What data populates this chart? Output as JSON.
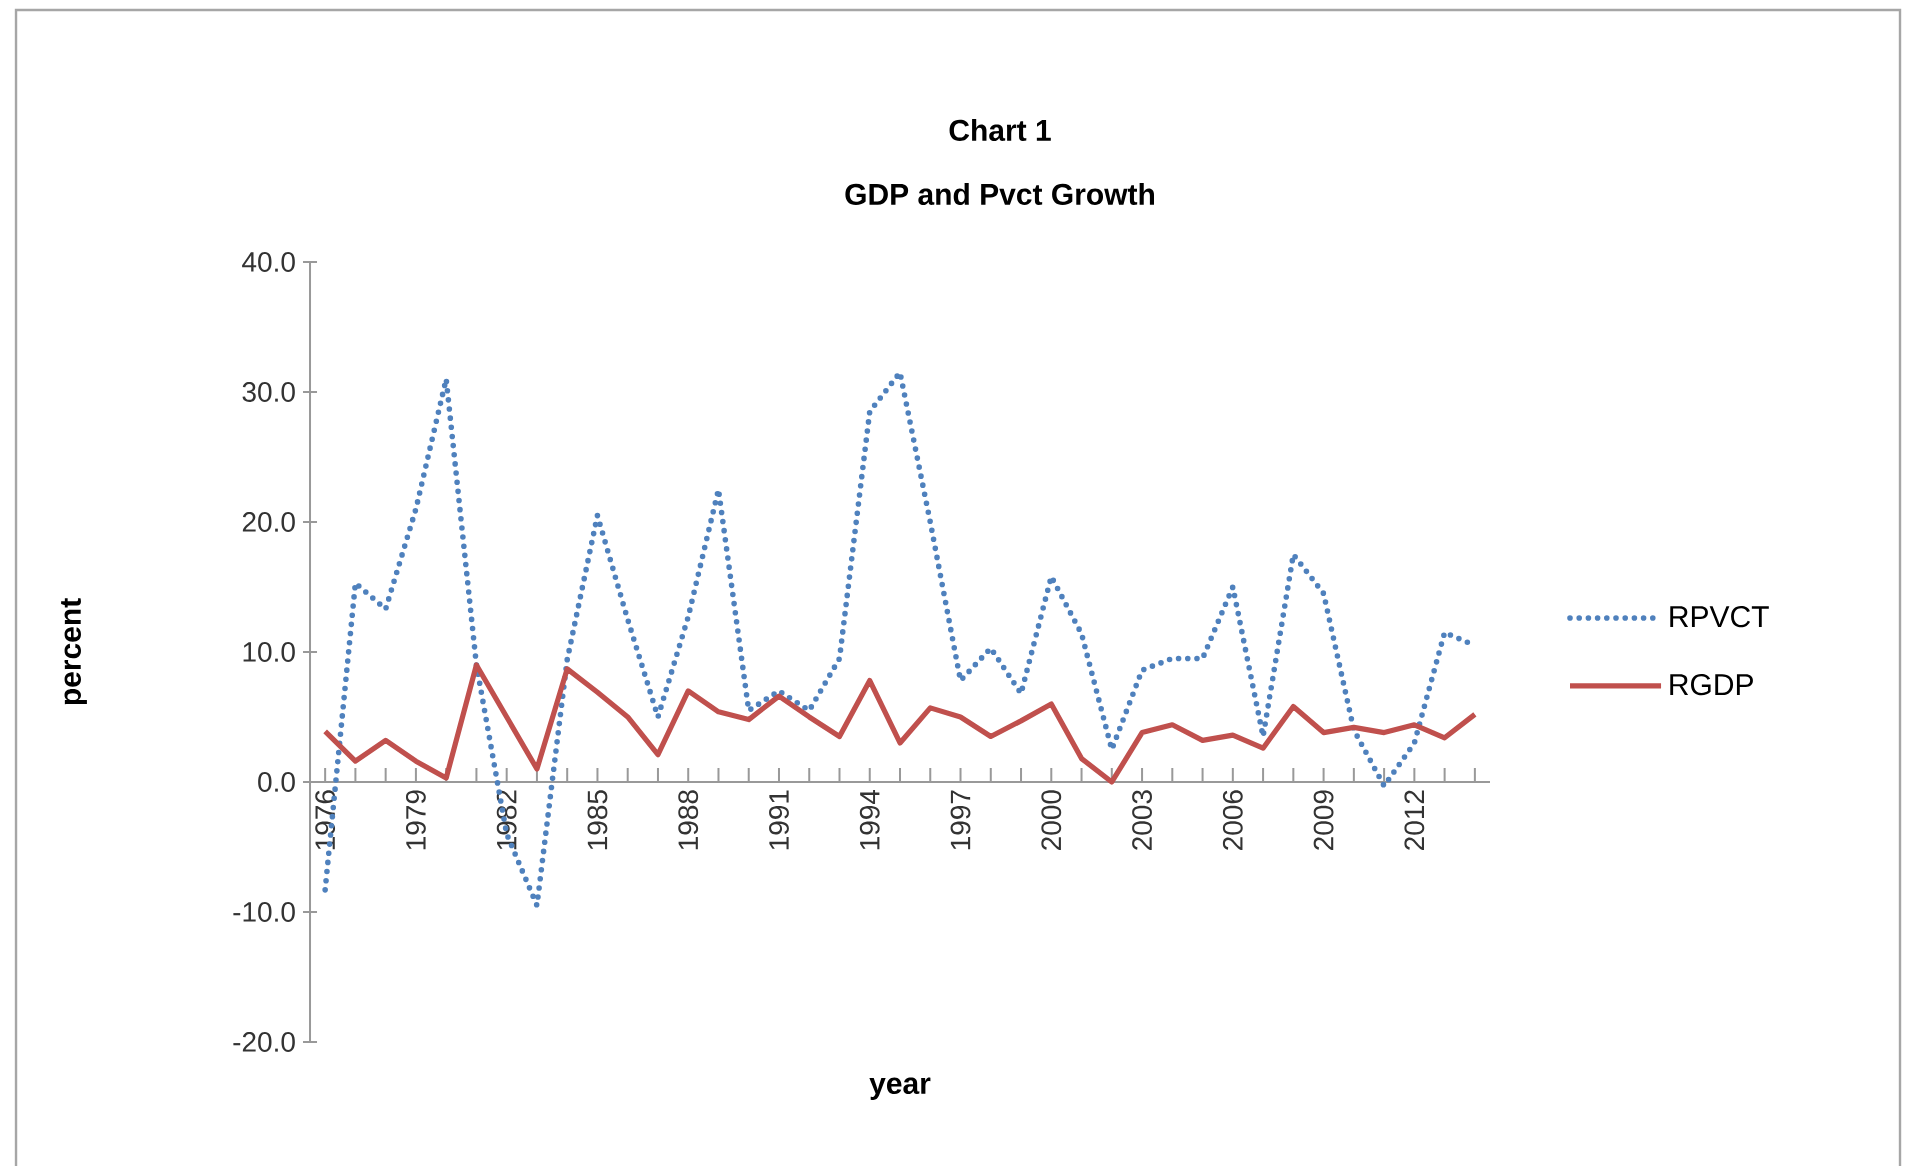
{
  "chart_data": {
    "type": "line",
    "title": "Chart 1",
    "subtitle": "GDP and Pvct Growth",
    "xlabel": "year",
    "ylabel": "percent",
    "categories": [
      "1976",
      null,
      null,
      "1979",
      null,
      null,
      "1982",
      null,
      null,
      "1985",
      null,
      null,
      "1988",
      null,
      null,
      "1991",
      null,
      null,
      "1994",
      null,
      null,
      "1997",
      null,
      null,
      "2000",
      null,
      null,
      "2003",
      null,
      null,
      "2006",
      null,
      null,
      "2009",
      null,
      null,
      "2012",
      null,
      null
    ],
    "series": [
      {
        "name": "RPVCT",
        "color": "#4f81bd",
        "line_style": "dotted",
        "values": [
          -8.3,
          15.3,
          13.3,
          21,
          31,
          9,
          -4,
          -9.5,
          9.4,
          20.5,
          12.5,
          5,
          12.7,
          22.5,
          5.5,
          7,
          5.5,
          9.5,
          28.5,
          31.5,
          20,
          7.8,
          10.3,
          6.8,
          15.8,
          11.4,
          2.5,
          8.6,
          9.5,
          9.5,
          15,
          3.5,
          17.5,
          14.5,
          4,
          -0.3,
          3,
          11.5,
          10.5
        ]
      },
      {
        "name": "RGDP",
        "color": "#c0504d",
        "line_style": "solid",
        "values": [
          3.9,
          1.6,
          3.2,
          1.6,
          0.3,
          9.0,
          5.0,
          1.0,
          8.7,
          6.9,
          5.0,
          2.1,
          7.0,
          5.4,
          4.8,
          6.6,
          5.0,
          3.5,
          7.8,
          3.0,
          5.7,
          5.0,
          3.5,
          4.7,
          6.0,
          1.8,
          0.0,
          3.8,
          4.4,
          3.2,
          3.6,
          2.6,
          5.8,
          3.8,
          4.2,
          3.8,
          4.4,
          3.4,
          5.2
        ]
      }
    ],
    "ylim": [
      -20,
      40
    ],
    "yticks": [
      {
        "value": -20,
        "label": "-20.0"
      },
      {
        "value": -10,
        "label": "-10.0"
      },
      {
        "value": 0,
        "label": "0.0"
      },
      {
        "value": 10,
        "label": "10.0"
      },
      {
        "value": 20,
        "label": "20.0"
      },
      {
        "value": 30,
        "label": "30.0"
      },
      {
        "value": 40,
        "label": "40.0"
      }
    ],
    "legend": "right",
    "marker": "none",
    "grid": false
  }
}
